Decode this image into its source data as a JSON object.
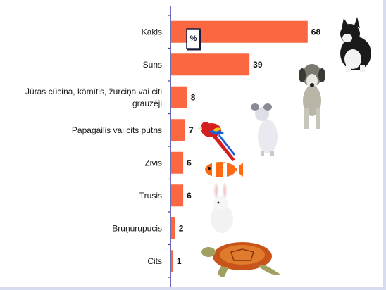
{
  "chart_data": {
    "type": "bar",
    "orientation": "horizontal",
    "categories": [
      [
        "Kaķis"
      ],
      [
        "Suns"
      ],
      [
        "Jūras cūciņa, kāmītis, žurciņa vai citi",
        "grauzēji"
      ],
      [
        "Papagailis vai cits putns"
      ],
      [
        "Zivis"
      ],
      [
        "Trusis"
      ],
      [
        "Bruņurupucis"
      ],
      [
        "Cits"
      ]
    ],
    "values": [
      68,
      39,
      8,
      7,
      6,
      6,
      2,
      1
    ],
    "unit_marker": "%",
    "xlim": [
      0,
      75
    ],
    "grid": false,
    "legend": "none",
    "bar_color": "#fb6741",
    "axis_color": "#3a3aa0"
  },
  "illustrations": [
    "cat-icon",
    "dog-icon",
    "rat-icon",
    "parrot-icon",
    "clownfish-icon",
    "rabbit-icon",
    "turtle-icon"
  ]
}
